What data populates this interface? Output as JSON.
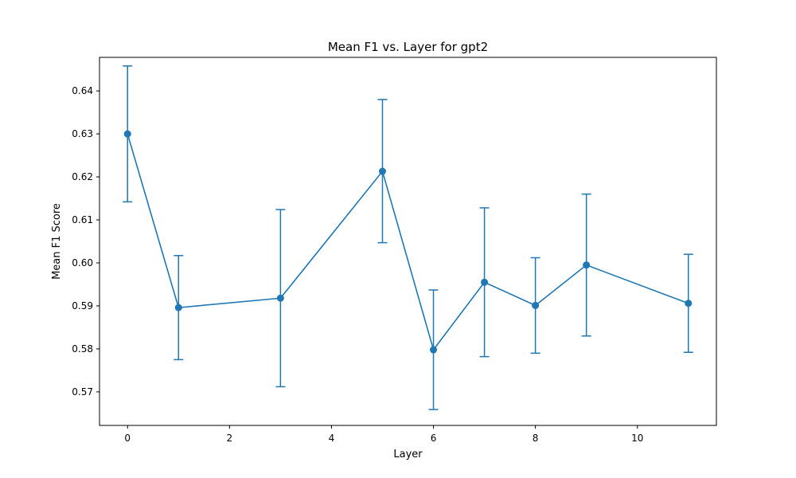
{
  "chart_data": {
    "type": "line",
    "title": "Mean F1 vs. Layer for gpt2",
    "xlabel": "Layer",
    "ylabel": "Mean F1 Score",
    "xlim": [
      -0.55,
      11.55
    ],
    "ylim": [
      0.5622,
      0.6478
    ],
    "xticks": [
      0,
      2,
      4,
      6,
      8,
      10
    ],
    "yticks": [
      0.57,
      0.58,
      0.59,
      0.6,
      0.61,
      0.62,
      0.63,
      0.64
    ],
    "ytick_labels": [
      "0.57",
      "0.58",
      "0.59",
      "0.60",
      "0.61",
      "0.62",
      "0.63",
      "0.64"
    ],
    "grid": false,
    "legend": "none",
    "color": "#1f77b4",
    "series": [
      {
        "x": [
          0,
          1,
          3,
          5,
          6,
          7,
          8,
          9,
          11
        ],
        "y": [
          0.63,
          0.5896,
          0.5918,
          0.6213,
          0.5798,
          0.5955,
          0.5901,
          0.5995,
          0.5906
        ],
        "err_low": [
          0.6142,
          0.5775,
          0.5712,
          0.6047,
          0.5659,
          0.5782,
          0.579,
          0.583,
          0.5792
        ],
        "err_high": [
          0.6458,
          0.6017,
          0.6124,
          0.638,
          0.5937,
          0.6128,
          0.6012,
          0.616,
          0.602
        ]
      }
    ]
  }
}
